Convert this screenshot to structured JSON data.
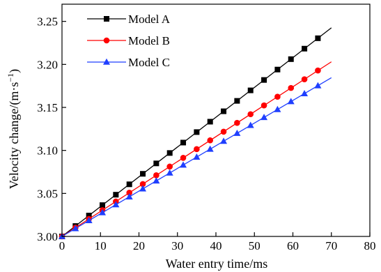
{
  "chart_data": {
    "type": "line",
    "xlabel": "Water entry time/ms",
    "ylabel": "Velocity change/(m·s⁻¹)",
    "ylabel_base": "Velocity change/(m·s",
    "ylabel_exp": "−1",
    "ylabel_close": ")",
    "xlim": [
      0,
      80
    ],
    "ylim": [
      3.0,
      3.27
    ],
    "x_ticks": [
      0,
      10,
      20,
      30,
      40,
      50,
      60,
      70,
      80
    ],
    "y_ticks": [
      3.0,
      3.05,
      3.1,
      3.15,
      3.2,
      3.25
    ],
    "y_tick_labels": [
      "3.00",
      "3.05",
      "3.10",
      "3.15",
      "3.20",
      "3.25"
    ],
    "x_tick_labels": [
      "0",
      "10",
      "20",
      "30",
      "40",
      "50",
      "60",
      "70",
      "80"
    ],
    "grid": false,
    "legend_position": "top-left",
    "series": [
      {
        "name": "Model A",
        "color": "#000000",
        "marker": "square",
        "line_x": [
          0,
          70
        ],
        "line_y": [
          3.0,
          3.2425
        ],
        "x": [
          0,
          3.5,
          7,
          10.5,
          14,
          17.5,
          21,
          24.5,
          28,
          31.5,
          35,
          38.5,
          42,
          45.5,
          49,
          52.5,
          56,
          59.5,
          63,
          66.5
        ],
        "y": [
          3.0,
          3.0121,
          3.0243,
          3.0364,
          3.0485,
          3.0606,
          3.0728,
          3.0849,
          3.097,
          3.1091,
          3.1213,
          3.1334,
          3.1455,
          3.1576,
          3.1698,
          3.1819,
          3.194,
          3.2061,
          3.2183,
          3.2304
        ]
      },
      {
        "name": "Model B",
        "color": "#ff0000",
        "marker": "circle",
        "line_x": [
          0,
          70
        ],
        "line_y": [
          3.0,
          3.203
        ],
        "x": [
          0,
          3.5,
          7,
          10.5,
          14,
          17.5,
          21,
          24.5,
          28,
          31.5,
          35,
          38.5,
          42,
          45.5,
          49,
          52.5,
          56,
          59.5,
          63,
          66.5
        ],
        "y": [
          3.0,
          3.0102,
          3.0203,
          3.0305,
          3.0406,
          3.0508,
          3.0609,
          3.0711,
          3.0812,
          3.0914,
          3.1015,
          3.1117,
          3.1218,
          3.132,
          3.1421,
          3.1523,
          3.1624,
          3.1726,
          3.1827,
          3.1929
        ]
      },
      {
        "name": "Model C",
        "color": "#1f3fff",
        "marker": "triangle",
        "line_x": [
          0,
          70
        ],
        "line_y": [
          3.0,
          3.1845
        ],
        "x": [
          0,
          3.5,
          7,
          10.5,
          14,
          17.5,
          21,
          24.5,
          28,
          31.5,
          35,
          38.5,
          42,
          45.5,
          49,
          52.5,
          56,
          59.5,
          63,
          66.5
        ],
        "y": [
          3.0,
          3.0092,
          3.0185,
          3.0277,
          3.0369,
          3.0461,
          3.0554,
          3.0646,
          3.0738,
          3.083,
          3.0923,
          3.1015,
          3.1107,
          3.1199,
          3.1292,
          3.1384,
          3.1476,
          3.1568,
          3.1661,
          3.1753
        ]
      }
    ]
  }
}
